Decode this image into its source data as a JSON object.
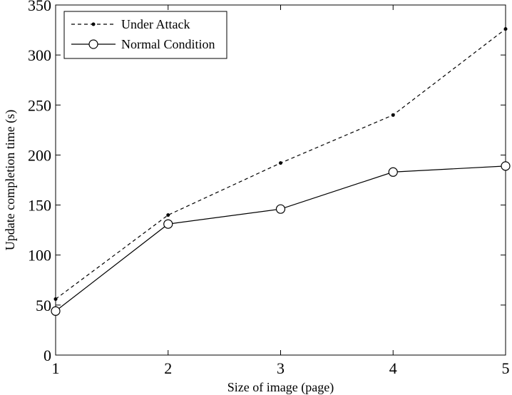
{
  "chart_data": {
    "type": "line",
    "title": "",
    "xlabel": "Size of image (page)",
    "ylabel": "Update completion time (s)",
    "xlim": [
      1,
      5
    ],
    "ylim": [
      0,
      350
    ],
    "xticks": [
      1,
      2,
      3,
      4,
      5
    ],
    "yticks": [
      0,
      50,
      100,
      150,
      200,
      250,
      300,
      350
    ],
    "x": [
      1,
      2,
      3,
      4,
      5
    ],
    "grid": false,
    "legend_position": "top-left",
    "series": [
      {
        "name": "Under Attack",
        "values": [
          56,
          140,
          192,
          240,
          326
        ],
        "line_style": "dashed",
        "marker": "dot",
        "color": "#000000"
      },
      {
        "name": "Normal Condition",
        "values": [
          44,
          131,
          146,
          183,
          189
        ],
        "line_style": "solid",
        "marker": "circle",
        "color": "#000000"
      }
    ]
  }
}
